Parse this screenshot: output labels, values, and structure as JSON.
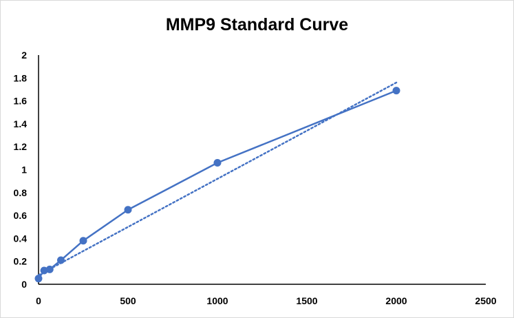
{
  "chart_data": {
    "type": "scatter",
    "title": "MMP9 Standard Curve",
    "xlabel": "",
    "ylabel": "",
    "xlim": [
      0,
      2500
    ],
    "ylim": [
      0,
      2
    ],
    "x_ticks": [
      0,
      500,
      1000,
      1500,
      2000,
      2500
    ],
    "y_ticks": [
      0,
      0.2,
      0.4,
      0.6,
      0.8,
      1,
      1.2,
      1.4,
      1.6,
      1.8,
      2
    ],
    "grid": false,
    "legend": "none",
    "series": [
      {
        "x": [
          0,
          31.25,
          62.5,
          125,
          250,
          500,
          1000,
          2000
        ],
        "y": [
          0.05,
          0.12,
          0.13,
          0.21,
          0.38,
          0.65,
          1.06,
          1.69
        ],
        "style": "line-with-markers",
        "color": "#4472c4"
      }
    ],
    "trendline": {
      "kind": "linear",
      "style": "dotted",
      "color": "#4472c4",
      "x": [
        0,
        2000
      ],
      "y": [
        0.08,
        1.76
      ]
    }
  }
}
